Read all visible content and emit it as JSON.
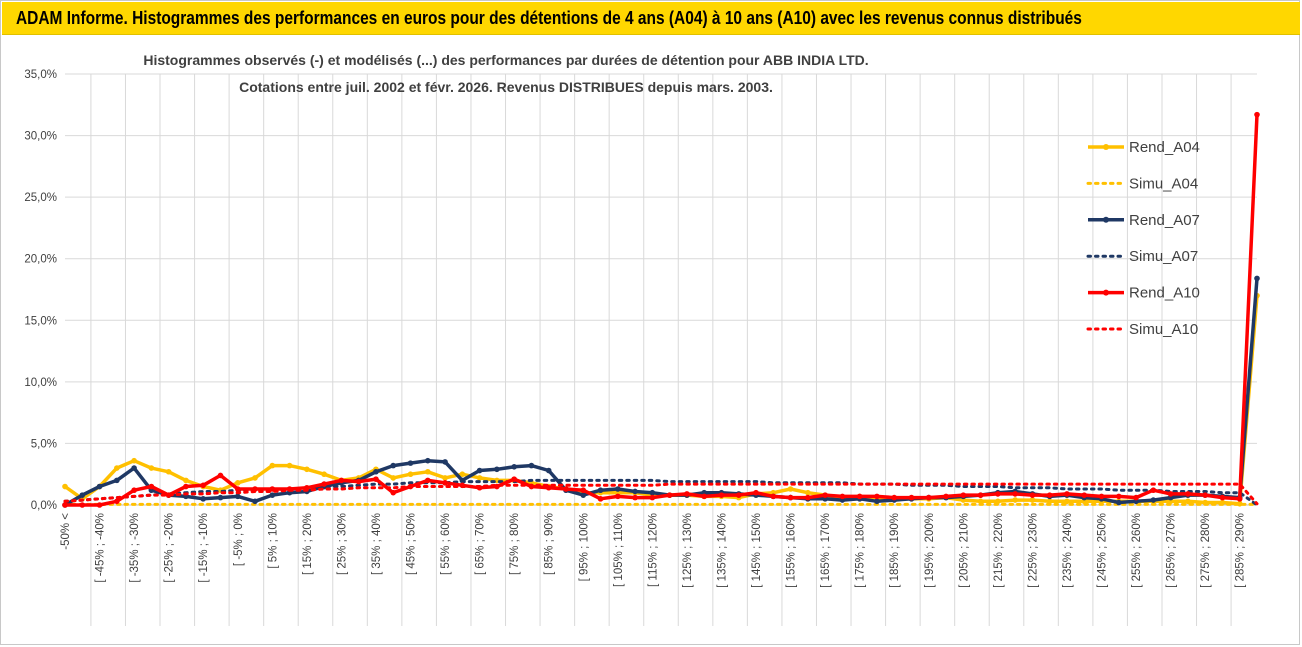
{
  "banner": {
    "title": "ADAM Informe. Histogrammes des performances en euros pour des détentions de 4 ans (A04) à 10 ans (A10) avec les revenus connus distribués"
  },
  "colors": {
    "banner_bg": "#ffd700",
    "a04": "#ffc000",
    "a07": "#1f3864",
    "a10": "#ff0000",
    "grid": "#d9d9d9",
    "text": "#404040"
  },
  "chart_data": {
    "type": "line",
    "title": [
      "Histogrammes observés (-) et modélisés (...) des performances par durées de détention pour ABB INDIA LTD.",
      "Cotations entre juil. 2002 et févr. 2026.  Revenus DISTRIBUES depuis mars. 2003."
    ],
    "xlabel": "",
    "ylabel": "",
    "ylim": [
      0,
      35
    ],
    "y_ticks": [
      "0,0%",
      "5,0%",
      "10,0%",
      "15,0%",
      "20,0%",
      "25,0%",
      "30,0%",
      "35,0%"
    ],
    "x_labels_shown": [
      "-50% <",
      "[ -45% ; -40%",
      "[ -35% ; -30%",
      "[ -25% ; -20%",
      "[ -15% ; -10%",
      "[ -5% ; 0%",
      "[ 5% ; 10%",
      "[ 15% ; 20%",
      "[ 25% ; 30%",
      "[ 35% ; 40%",
      "[ 45% ; 50%",
      "[ 55% ; 60%",
      "[ 65% ; 70%",
      "[ 75% ; 80%",
      "[ 85% ; 90%",
      "[ 95% ; 100%",
      "[ 105% ; 110%",
      "[ 115% ; 120%",
      "[ 125% ; 130%",
      "[ 135% ; 140%",
      "[ 145% ; 150%",
      "[ 155% ; 160%",
      "[ 165% ; 170%",
      "[ 175% ; 180%",
      "[ 185% ; 190%",
      "[ 195% ; 200%",
      "[ 205% ; 210%",
      "[ 215% ; 220%",
      "[ 225% ; 230%",
      "[ 235% ; 240%",
      "[ 245% ; 250%",
      "[ 255% ; 260%",
      "[ 265% ; 270%",
      "[ 275% ; 280%",
      "[ 285% ; 290%"
    ],
    "categories_count": 70,
    "legend_position": "right",
    "series": [
      {
        "name": "Rend_A04",
        "style": "solid-marker",
        "color": "#ffc000",
        "values": [
          1.5,
          0.5,
          1.5,
          3.0,
          3.6,
          3.0,
          2.7,
          2.0,
          1.5,
          1.2,
          1.8,
          2.2,
          3.2,
          3.2,
          2.9,
          2.5,
          2.0,
          2.2,
          2.9,
          2.2,
          2.5,
          2.7,
          2.2,
          2.5,
          2.2,
          2.0,
          2.0,
          1.8,
          1.5,
          1.3,
          1.0,
          1.0,
          1.0,
          1.0,
          0.8,
          0.8,
          0.8,
          0.7,
          0.7,
          0.6,
          0.9,
          1.0,
          1.3,
          1.0,
          0.8,
          0.6,
          0.7,
          0.6,
          0.5,
          0.5,
          0.5,
          0.6,
          0.4,
          0.3,
          0.3,
          0.4,
          0.4,
          0.3,
          0.3,
          0.3,
          0.3,
          0.3,
          0.3,
          0.3,
          0.3,
          0.3,
          0.2,
          0.2,
          0.1,
          17.0
        ]
      },
      {
        "name": "Simu_A04",
        "style": "dotted",
        "color": "#ffc000",
        "values": [
          0.05,
          0.05,
          0.05,
          0.05,
          0.05,
          0.05,
          0.05,
          0.05,
          0.05,
          0.05,
          0.05,
          0.05,
          0.05,
          0.05,
          0.05,
          0.05,
          0.05,
          0.05,
          0.05,
          0.05,
          0.05,
          0.05,
          0.05,
          0.05,
          0.05,
          0.05,
          0.05,
          0.05,
          0.05,
          0.05,
          0.05,
          0.05,
          0.05,
          0.05,
          0.05,
          0.05,
          0.05,
          0.05,
          0.05,
          0.05,
          0.05,
          0.05,
          0.05,
          0.05,
          0.05,
          0.05,
          0.05,
          0.05,
          0.05,
          0.05,
          0.05,
          0.05,
          0.05,
          0.05,
          0.05,
          0.05,
          0.05,
          0.05,
          0.05,
          0.05,
          0.05,
          0.05,
          0.05,
          0.05,
          0.05,
          0.05,
          0.05,
          0.05,
          0.05,
          0.05
        ]
      },
      {
        "name": "Rend_A07",
        "style": "solid-marker",
        "color": "#1f3864",
        "values": [
          0.0,
          0.8,
          1.5,
          2.0,
          3.0,
          1.2,
          0.8,
          0.7,
          0.5,
          0.6,
          0.7,
          0.3,
          0.8,
          1.0,
          1.1,
          1.5,
          1.8,
          2.0,
          2.7,
          3.2,
          3.4,
          3.6,
          3.5,
          2.0,
          2.8,
          2.9,
          3.1,
          3.2,
          2.8,
          1.2,
          0.8,
          1.2,
          1.3,
          1.1,
          1.0,
          0.8,
          0.8,
          1.0,
          1.0,
          0.9,
          0.8,
          0.7,
          0.6,
          0.5,
          0.5,
          0.4,
          0.5,
          0.3,
          0.4,
          0.5,
          0.6,
          0.6,
          0.7,
          0.8,
          1.0,
          1.1,
          0.9,
          0.7,
          0.8,
          0.6,
          0.5,
          0.2,
          0.3,
          0.4,
          0.6,
          0.8,
          0.8,
          0.7,
          0.6,
          18.4
        ]
      },
      {
        "name": "Simu_A07",
        "style": "dotted",
        "color": "#1f3864",
        "values": [
          0.3,
          0.4,
          0.5,
          0.6,
          0.7,
          0.8,
          0.9,
          1.0,
          1.1,
          1.1,
          1.2,
          1.2,
          1.3,
          1.3,
          1.4,
          1.5,
          1.5,
          1.6,
          1.7,
          1.7,
          1.8,
          1.8,
          1.8,
          1.9,
          1.9,
          1.9,
          1.9,
          2.0,
          2.0,
          2.0,
          2.0,
          2.0,
          2.0,
          2.0,
          2.0,
          1.9,
          1.9,
          1.9,
          1.9,
          1.9,
          1.9,
          1.8,
          1.8,
          1.8,
          1.8,
          1.8,
          1.7,
          1.7,
          1.7,
          1.6,
          1.6,
          1.6,
          1.5,
          1.5,
          1.5,
          1.4,
          1.4,
          1.4,
          1.3,
          1.3,
          1.3,
          1.2,
          1.2,
          1.2,
          1.1,
          1.1,
          1.1,
          1.0,
          1.0,
          0.0
        ]
      },
      {
        "name": "Rend_A10",
        "style": "solid-marker",
        "color": "#ff0000",
        "values": [
          0.0,
          0.0,
          0.0,
          0.3,
          1.2,
          1.5,
          0.8,
          1.5,
          1.6,
          2.4,
          1.3,
          1.3,
          1.3,
          1.3,
          1.4,
          1.7,
          2.0,
          1.9,
          2.1,
          1.0,
          1.5,
          2.0,
          1.8,
          1.6,
          1.4,
          1.5,
          2.1,
          1.5,
          1.4,
          1.3,
          1.2,
          0.5,
          0.7,
          0.6,
          0.6,
          0.8,
          0.9,
          0.7,
          0.8,
          0.8,
          1.0,
          0.7,
          0.6,
          0.6,
          0.8,
          0.7,
          0.7,
          0.7,
          0.6,
          0.6,
          0.6,
          0.7,
          0.8,
          0.8,
          0.9,
          0.9,
          0.8,
          0.8,
          0.9,
          0.8,
          0.7,
          0.7,
          0.6,
          1.2,
          0.9,
          0.9,
          0.8,
          0.6,
          0.5,
          31.7
        ]
      },
      {
        "name": "Simu_A10",
        "style": "dotted",
        "color": "#ff0000",
        "values": [
          0.3,
          0.4,
          0.5,
          0.6,
          0.7,
          0.8,
          0.8,
          0.9,
          0.9,
          1.0,
          1.0,
          1.1,
          1.1,
          1.2,
          1.2,
          1.3,
          1.3,
          1.4,
          1.4,
          1.4,
          1.5,
          1.5,
          1.5,
          1.5,
          1.5,
          1.6,
          1.6,
          1.6,
          1.6,
          1.6,
          1.6,
          1.6,
          1.6,
          1.6,
          1.6,
          1.7,
          1.7,
          1.7,
          1.7,
          1.7,
          1.7,
          1.7,
          1.7,
          1.7,
          1.7,
          1.7,
          1.7,
          1.7,
          1.7,
          1.7,
          1.7,
          1.7,
          1.7,
          1.7,
          1.7,
          1.7,
          1.7,
          1.7,
          1.7,
          1.7,
          1.7,
          1.7,
          1.7,
          1.7,
          1.7,
          1.7,
          1.7,
          1.7,
          1.7,
          0.1
        ]
      }
    ]
  }
}
